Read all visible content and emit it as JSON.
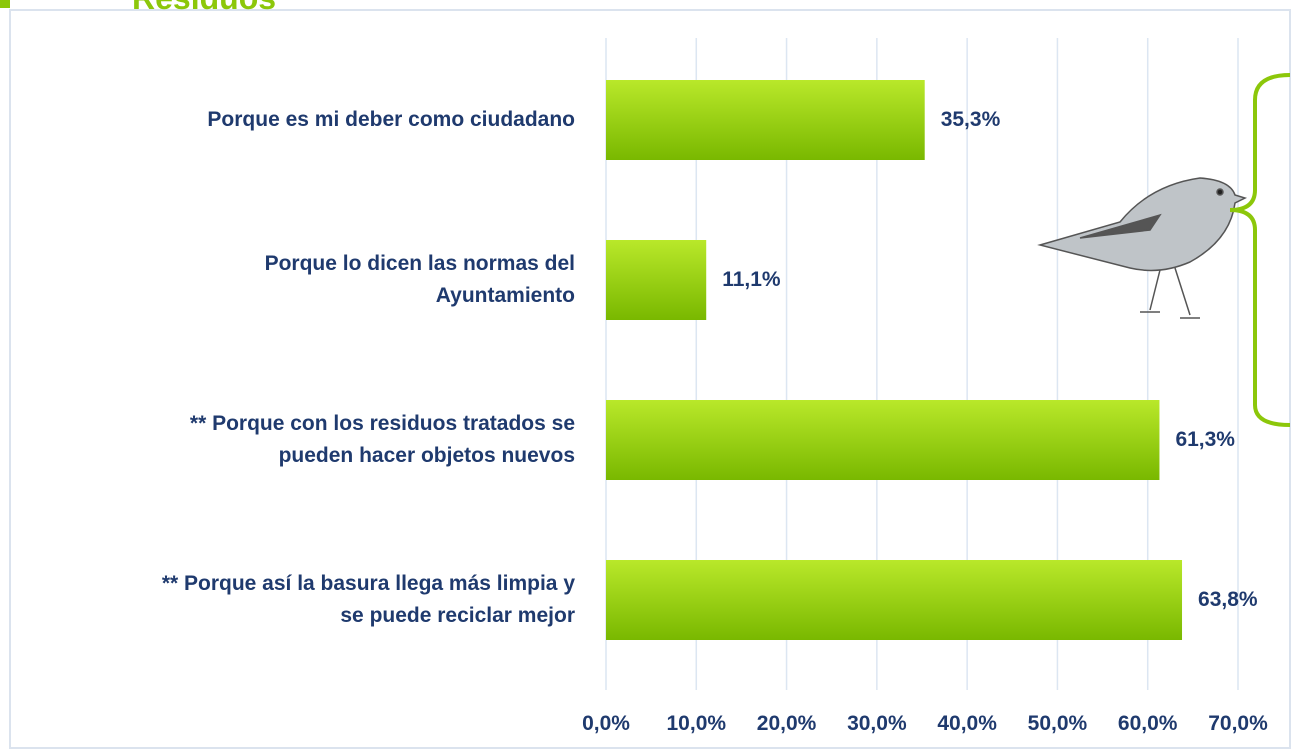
{
  "chart_data": {
    "type": "bar",
    "orientation": "horizontal",
    "title": "Residuos",
    "categories": [
      "Porque es mi deber como ciudadano",
      "Porque lo dicen las normas del\nAyuntamiento",
      "** Porque con los residuos tratados se\npueden hacer objetos nuevos",
      "** Porque así la basura llega más limpia y\nse puede reciclar mejor"
    ],
    "values": [
      35.3,
      11.1,
      61.3,
      63.8
    ],
    "value_labels": [
      "35,3%",
      "11,1%",
      "61,3%",
      "63,8%"
    ],
    "color": "#8cc70a",
    "xlim": [
      0,
      70
    ],
    "xticks": [
      {
        "value": 0,
        "label": "0,0%"
      },
      {
        "value": 10,
        "label": "10,0%"
      },
      {
        "value": 20,
        "label": "20,0%"
      },
      {
        "value": 30,
        "label": "30,0%"
      },
      {
        "value": 40,
        "label": "40,0%"
      },
      {
        "value": 50,
        "label": "50,0%"
      },
      {
        "value": 60,
        "label": "60,0%"
      },
      {
        "value": 70,
        "label": "70,0%"
      }
    ],
    "grid": true
  }
}
